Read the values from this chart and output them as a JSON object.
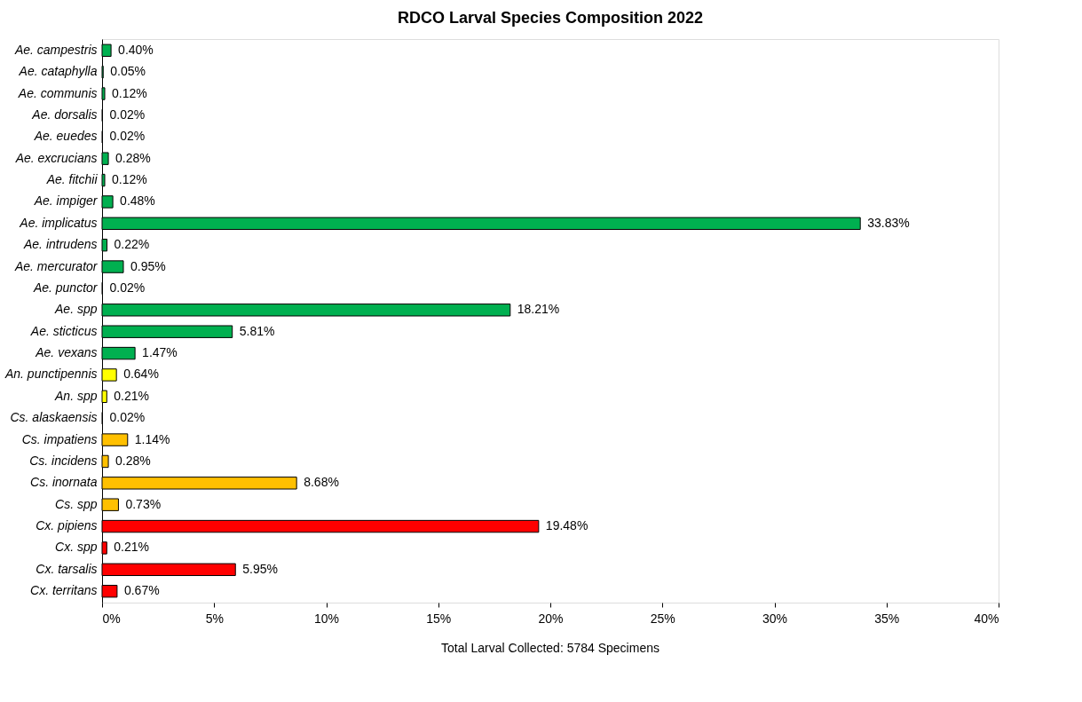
{
  "chart_data": {
    "type": "bar",
    "orientation": "horizontal",
    "title": "RDCO Larval Species Composition 2022",
    "categories": [
      "Ae. campestris",
      "Ae. cataphylla",
      "Ae. communis",
      "Ae. dorsalis",
      "Ae. euedes",
      "Ae. excrucians",
      "Ae. fitchii",
      "Ae. impiger",
      "Ae. implicatus",
      "Ae. intrudens",
      "Ae. mercurator",
      "Ae. punctor",
      "Ae. spp",
      "Ae. sticticus",
      "Ae. vexans",
      "An. punctipennis",
      "An. spp",
      "Cs. alaskaensis",
      "Cs. impatiens",
      "Cs. incidens",
      "Cs. inornata",
      "Cs. spp",
      "Cx. pipiens",
      "Cx. spp",
      "Cx. tarsalis",
      "Cx. territans"
    ],
    "values": [
      0.4,
      0.05,
      0.12,
      0.02,
      0.02,
      0.28,
      0.12,
      0.48,
      33.83,
      0.22,
      0.95,
      0.02,
      18.21,
      5.81,
      1.47,
      0.64,
      0.21,
      0.02,
      1.14,
      0.28,
      8.68,
      0.73,
      19.48,
      0.21,
      5.95,
      0.67
    ],
    "value_labels": [
      "0.40%",
      "0.05%",
      "0.12%",
      "0.02%",
      "0.02%",
      "0.28%",
      "0.12%",
      "0.48%",
      "33.83%",
      "0.22%",
      "0.95%",
      "0.02%",
      "18.21%",
      "5.81%",
      "1.47%",
      "0.64%",
      "0.21%",
      "0.02%",
      "1.14%",
      "0.28%",
      "8.68%",
      "0.73%",
      "19.48%",
      "0.21%",
      "5.95%",
      "0.67%"
    ],
    "colors": [
      "#00b050",
      "#00b050",
      "#00b050",
      "#00b050",
      "#00b050",
      "#00b050",
      "#00b050",
      "#00b050",
      "#00b050",
      "#00b050",
      "#00b050",
      "#00b050",
      "#00b050",
      "#00b050",
      "#00b050",
      "#ffff00",
      "#ffff00",
      "#ffc000",
      "#ffc000",
      "#ffc000",
      "#ffc000",
      "#ffc000",
      "#ff0000",
      "#ff0000",
      "#ff0000",
      "#ff0000"
    ],
    "xlim": [
      0,
      40
    ],
    "xticks": [
      {
        "value": 0,
        "label": "0%"
      },
      {
        "value": 5,
        "label": "5%"
      },
      {
        "value": 10,
        "label": "10%"
      },
      {
        "value": 15,
        "label": "15%"
      },
      {
        "value": 20,
        "label": "20%"
      },
      {
        "value": 25,
        "label": "25%"
      },
      {
        "value": 30,
        "label": "30%"
      },
      {
        "value": 35,
        "label": "35%"
      },
      {
        "value": 40,
        "label": "40%"
      }
    ],
    "annotations": [
      "Total Larval Collected:   5784 Specimens"
    ],
    "grid": false
  }
}
